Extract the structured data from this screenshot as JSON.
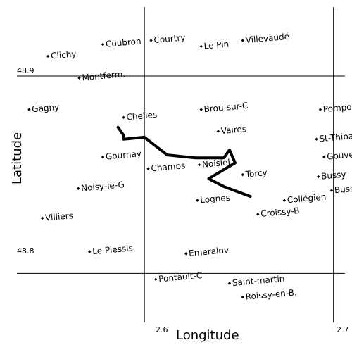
{
  "map": {
    "xlabel": "Longitude",
    "ylabel": "Latitude",
    "lon_range": [
      2.5236,
      2.7098
    ],
    "lat_range": [
      48.7602,
      48.9385
    ],
    "lon_ticks": [
      "2.6",
      "2.7"
    ],
    "lat_ticks": [
      "48.9",
      "48.8"
    ],
    "grid": true,
    "places": [
      {
        "name": "Clichy",
        "lon": 2.549,
        "lat": 48.91
      },
      {
        "name": "Coubron",
        "lon": 2.578,
        "lat": 48.916
      },
      {
        "name": "Courtry",
        "lon": 2.6035,
        "lat": 48.918
      },
      {
        "name": "Le Pin",
        "lon": 2.63,
        "lat": 48.915
      },
      {
        "name": "Villevaudé",
        "lon": 2.652,
        "lat": 48.918
      },
      {
        "name": "Montferm.",
        "lon": 2.5655,
        "lat": 48.899
      },
      {
        "name": "Gagny",
        "lon": 2.539,
        "lat": 48.883
      },
      {
        "name": "Chelles",
        "lon": 2.589,
        "lat": 48.879
      },
      {
        "name": "Brou-sur-C",
        "lon": 2.63,
        "lat": 48.883
      },
      {
        "name": "Pomponne",
        "lon": 2.693,
        "lat": 48.883
      },
      {
        "name": "Vaires",
        "lon": 2.639,
        "lat": 48.872
      },
      {
        "name": "St-Thibault",
        "lon": 2.691,
        "lat": 48.868
      },
      {
        "name": "Gournay",
        "lon": 2.578,
        "lat": 48.859
      },
      {
        "name": "Gouvernes",
        "lon": 2.695,
        "lat": 48.859
      },
      {
        "name": "Champs",
        "lon": 2.602,
        "lat": 48.853
      },
      {
        "name": "Noisiel",
        "lon": 2.629,
        "lat": 48.855
      },
      {
        "name": "Torcy",
        "lon": 2.652,
        "lat": 48.85
      },
      {
        "name": "Bussy",
        "lon": 2.692,
        "lat": 48.849
      },
      {
        "name": "Noisy-le-G",
        "lon": 2.565,
        "lat": 48.843
      },
      {
        "name": "Bussy-St-G",
        "lon": 2.699,
        "lat": 48.842
      },
      {
        "name": "Lognes",
        "lon": 2.628,
        "lat": 48.837
      },
      {
        "name": "Collégien",
        "lon": 2.674,
        "lat": 48.837
      },
      {
        "name": "Villiers",
        "lon": 2.546,
        "lat": 48.828
      },
      {
        "name": "Croissy-B",
        "lon": 2.66,
        "lat": 48.83
      },
      {
        "name": "Le Plessis",
        "lon": 2.571,
        "lat": 48.811
      },
      {
        "name": "Emerainv",
        "lon": 2.622,
        "lat": 48.81
      },
      {
        "name": "Pontault-C",
        "lon": 2.606,
        "lat": 48.797
      },
      {
        "name": "Saint-martin",
        "lon": 2.645,
        "lat": 48.795
      },
      {
        "name": "Roissy-en-B.",
        "lon": 2.652,
        "lat": 48.788
      }
    ],
    "route": [
      [
        2.586,
        48.874
      ],
      [
        2.589,
        48.87
      ],
      [
        2.589,
        48.868
      ],
      [
        2.6,
        48.869
      ],
      [
        2.612,
        48.86
      ],
      [
        2.627,
        48.8585
      ],
      [
        2.642,
        48.8585
      ],
      [
        2.645,
        48.8625
      ],
      [
        2.648,
        48.856
      ],
      [
        2.634,
        48.848
      ],
      [
        2.642,
        48.844
      ],
      [
        2.656,
        48.839
      ]
    ]
  }
}
